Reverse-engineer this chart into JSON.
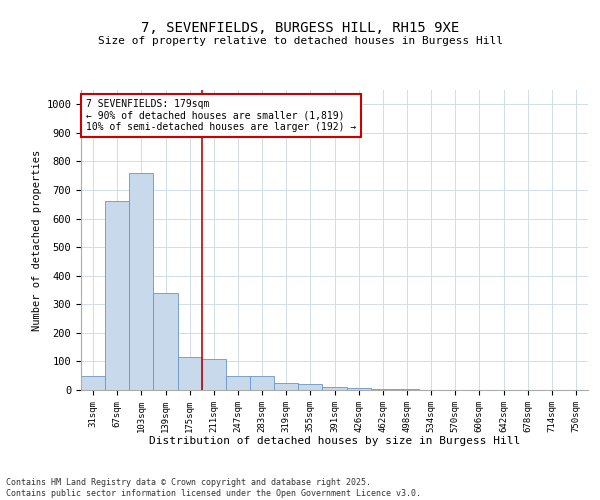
{
  "title_line1": "7, SEVENFIELDS, BURGESS HILL, RH15 9XE",
  "title_line2": "Size of property relative to detached houses in Burgess Hill",
  "xlabel": "Distribution of detached houses by size in Burgess Hill",
  "ylabel": "Number of detached properties",
  "categories": [
    "31sqm",
    "67sqm",
    "103sqm",
    "139sqm",
    "175sqm",
    "211sqm",
    "247sqm",
    "283sqm",
    "319sqm",
    "355sqm",
    "391sqm",
    "426sqm",
    "462sqm",
    "498sqm",
    "534sqm",
    "570sqm",
    "606sqm",
    "642sqm",
    "678sqm",
    "714sqm",
    "750sqm"
  ],
  "bar_heights": [
    50,
    660,
    760,
    340,
    115,
    110,
    50,
    50,
    25,
    20,
    12,
    8,
    5,
    2,
    1,
    0,
    0,
    0,
    0,
    0,
    0
  ],
  "bar_color": "#c9d9ec",
  "bar_edge_color": "#6896c8",
  "ylim": [
    0,
    1050
  ],
  "yticks": [
    0,
    100,
    200,
    300,
    400,
    500,
    600,
    700,
    800,
    900,
    1000
  ],
  "red_line_x": 4.5,
  "annotation_text": "7 SEVENFIELDS: 179sqm\n← 90% of detached houses are smaller (1,819)\n10% of semi-detached houses are larger (192) →",
  "annotation_box_color": "#ffffff",
  "annotation_box_edge": "#cc0000",
  "vline_color": "#cc0000",
  "footnote": "Contains HM Land Registry data © Crown copyright and database right 2025.\nContains public sector information licensed under the Open Government Licence v3.0.",
  "background_color": "#ffffff",
  "grid_color": "#d0dce8"
}
